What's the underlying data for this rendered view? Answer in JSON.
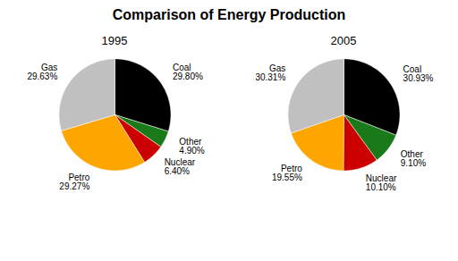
{
  "title": "Comparison of Energy Production",
  "chart_data": [
    {
      "type": "pie",
      "title": "1995",
      "categories": [
        "Coal",
        "Other",
        "Nuclear",
        "Petro",
        "Gas"
      ],
      "values": [
        29.8,
        4.9,
        6.4,
        29.27,
        29.63
      ],
      "value_labels": [
        "29.80%",
        "4.90%",
        "6.40%",
        "29.27%",
        "29.63%"
      ],
      "colors": [
        "#000000",
        "#1a7a1a",
        "#cc0000",
        "#ffa500",
        "#c0c0c0"
      ],
      "data_labels": true
    },
    {
      "type": "pie",
      "title": "2005",
      "categories": [
        "Coal",
        "Other",
        "Nuclear",
        "Petro",
        "Gas"
      ],
      "values": [
        30.93,
        9.1,
        10.1,
        19.55,
        30.31
      ],
      "value_labels": [
        "30.93%",
        "9.10%",
        "10.10%",
        "19.55%",
        "30.31%"
      ],
      "colors": [
        "#000000",
        "#1a7a1a",
        "#cc0000",
        "#ffa500",
        "#c0c0c0"
      ],
      "data_labels": true
    }
  ]
}
